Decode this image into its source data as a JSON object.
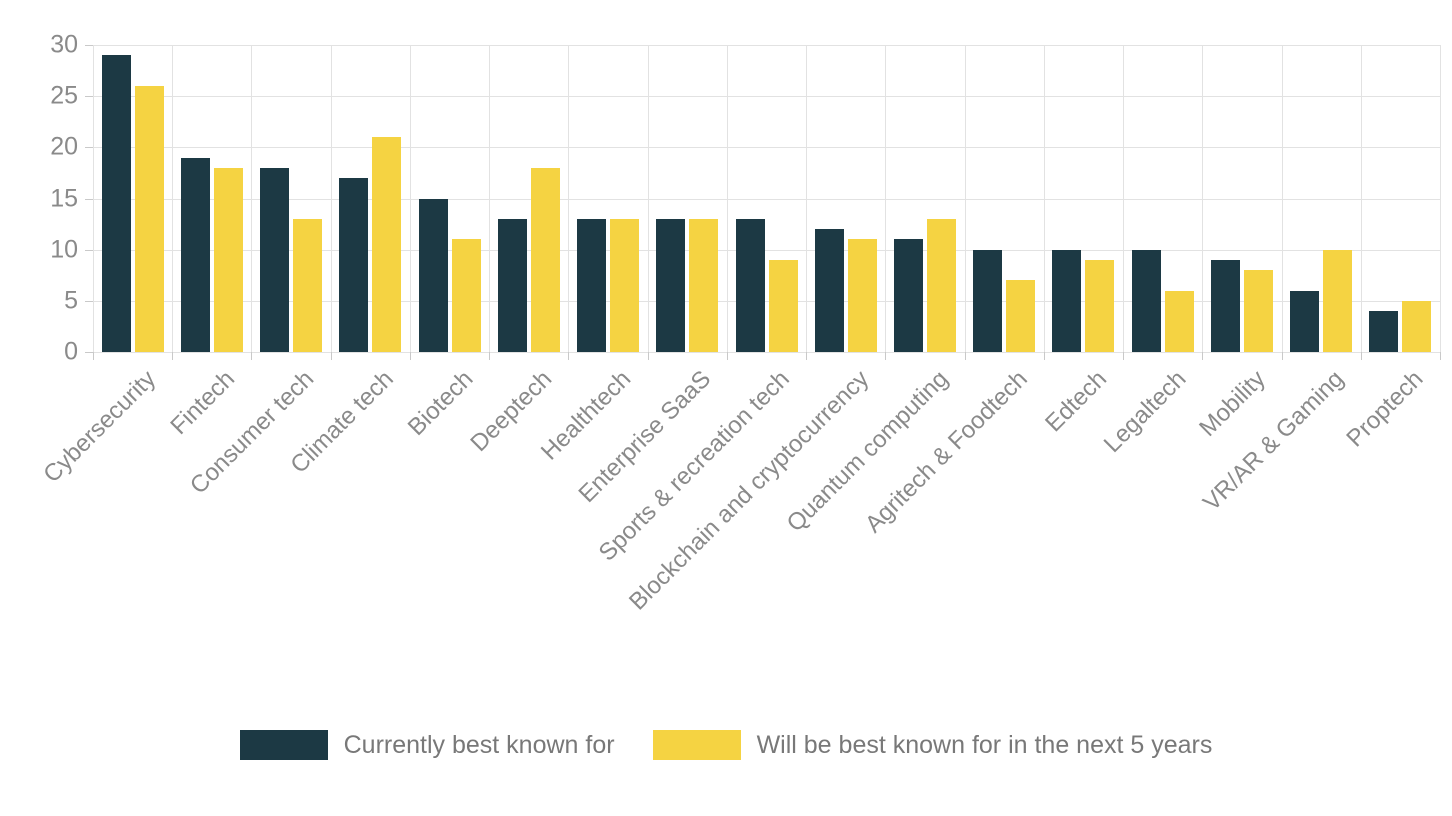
{
  "chart_data": {
    "type": "bar",
    "title": "",
    "xlabel": "",
    "ylabel": "",
    "categories": [
      "Cybersecurity",
      "Fintech",
      "Consumer tech",
      "Climate tech",
      "Biotech",
      "Deeptech",
      "Healthtech",
      "Enterprise SaaS",
      "Sports & recreation tech",
      "Blockchain and cryptocurrency",
      "Quantum computing",
      "Agritech & Foodtech",
      "Edtech",
      "Legaltech",
      "Mobility",
      "VR/AR & Gaming",
      "Proptech"
    ],
    "series": [
      {
        "name": "Currently best known for",
        "color": "#1c3944",
        "values": [
          29,
          19,
          18,
          17,
          15,
          13,
          13,
          13,
          13,
          12,
          11,
          10,
          10,
          10,
          9,
          6,
          4
        ]
      },
      {
        "name": "Will be best known for in the next 5 years",
        "color": "#f5d342",
        "values": [
          26,
          18,
          13,
          21,
          11,
          18,
          13,
          13,
          9,
          11,
          13,
          7,
          9,
          6,
          8,
          10,
          5
        ]
      }
    ],
    "y_axis": {
      "min": 0,
      "max": 30,
      "tick_step": 5,
      "ticks": [
        0,
        5,
        10,
        15,
        20,
        25,
        30
      ]
    },
    "grid": true,
    "legend_position": "bottom",
    "x_label_rotation_deg": -45
  },
  "colors": {
    "background": "#ffffff",
    "grid": "#e2e2e2",
    "tick": "#c9c9c9",
    "axis_text": "#8a8a8a",
    "x_label_text": "#8a8a8a",
    "legend_text": "#787878"
  }
}
